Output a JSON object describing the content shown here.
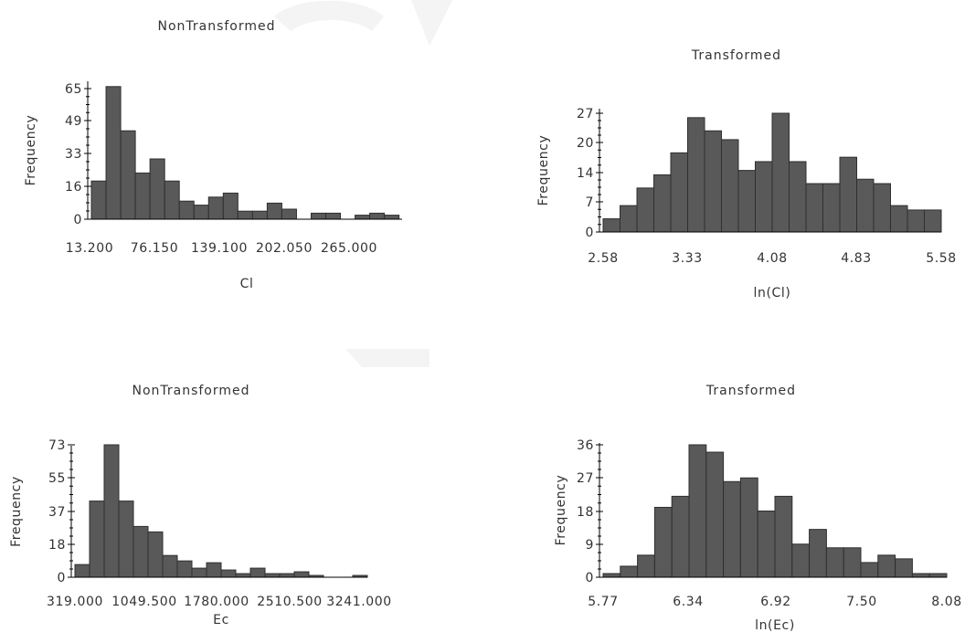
{
  "chart_data": [
    {
      "type": "bar",
      "title": "NonTransformed",
      "xlabel": "Cl",
      "ylabel": "Frequency",
      "x_ticks": [
        "13.200",
        "76.150",
        "139.100",
        "202.050",
        "265.000"
      ],
      "y_ticks": [
        "0",
        "16",
        "33",
        "49",
        "65"
      ],
      "xlim": [
        5,
        272
      ],
      "ylim": [
        0,
        65
      ],
      "bin_edges": [
        5,
        17.59,
        30.18,
        42.77,
        55.36,
        67.95,
        80.54,
        93.13,
        105.72,
        118.31,
        130.9,
        143.49,
        156.08,
        168.67,
        181.26,
        193.85,
        206.44,
        219.03,
        231.62,
        244.21,
        256.8,
        269.39,
        272
      ],
      "values": [
        19,
        66,
        44,
        23,
        30,
        19,
        9,
        7,
        11,
        13,
        4,
        4,
        8,
        5,
        0,
        3,
        3,
        0,
        2,
        3,
        2,
        0
      ],
      "grid": false
    },
    {
      "type": "bar",
      "title": "Transformed",
      "xlabel": "ln(Cl)",
      "ylabel": "Frequency",
      "x_ticks": [
        "2.58",
        "3.33",
        "4.08",
        "4.83",
        "5.58"
      ],
      "y_ticks": [
        "0",
        "7",
        "14",
        "20",
        "27"
      ],
      "xlim": [
        2.58,
        5.58
      ],
      "ylim": [
        0,
        27
      ],
      "bin_edges": [
        2.58,
        2.73,
        2.88,
        3.03,
        3.18,
        3.33,
        3.48,
        3.63,
        3.78,
        3.93,
        4.08,
        4.23,
        4.38,
        4.53,
        4.68,
        4.83,
        4.98,
        5.13,
        5.28,
        5.43,
        5.58
      ],
      "values": [
        3,
        6,
        10,
        13,
        18,
        26,
        23,
        21,
        14,
        16,
        27,
        16,
        11,
        11,
        17,
        12,
        11,
        6,
        5,
        5
      ],
      "grid": false
    },
    {
      "type": "bar",
      "title": "NonTransformed",
      "xlabel": "Ec",
      "ylabel": "Frequency",
      "x_ticks": [
        "319.000",
        "1049.500",
        "1780.000",
        "2510.500",
        "3241.000"
      ],
      "y_ticks": [
        "0",
        "18",
        "37",
        "55",
        "73"
      ],
      "xlim": [
        200,
        3500
      ],
      "ylim": [
        0,
        73
      ],
      "bin_edges": [
        200,
        365,
        530,
        695,
        860,
        1025,
        1190,
        1355,
        1520,
        1685,
        1850,
        2015,
        2180,
        2345,
        2510,
        2675,
        2840,
        3005,
        3170,
        3335,
        3500
      ],
      "values": [
        7,
        42,
        73,
        42,
        28,
        25,
        12,
        9,
        5,
        8,
        4,
        2,
        5,
        2,
        2,
        3,
        1,
        0,
        0,
        1
      ],
      "grid": false
    },
    {
      "type": "bar",
      "title": "Transformed",
      "xlabel": "ln(Ec)",
      "ylabel": "Frequency",
      "x_ticks": [
        "5.77",
        "6.34",
        "6.92",
        "7.50",
        "8.08"
      ],
      "y_ticks": [
        "0",
        "9",
        "18",
        "27",
        "36"
      ],
      "xlim": [
        5.77,
        8.08
      ],
      "ylim": [
        0,
        36
      ],
      "bin_edges": [
        5.77,
        5.8855,
        6.001,
        6.1165,
        6.232,
        6.3475,
        6.463,
        6.5785,
        6.694,
        6.8095,
        6.925,
        7.0405,
        7.156,
        7.2715,
        7.387,
        7.5025,
        7.618,
        7.7335,
        7.849,
        7.9645,
        8.08
      ],
      "values": [
        1,
        3,
        6,
        19,
        22,
        36,
        34,
        26,
        27,
        18,
        22,
        9,
        13,
        8,
        8,
        4,
        6,
        5,
        1,
        1
      ],
      "grid": false
    }
  ]
}
